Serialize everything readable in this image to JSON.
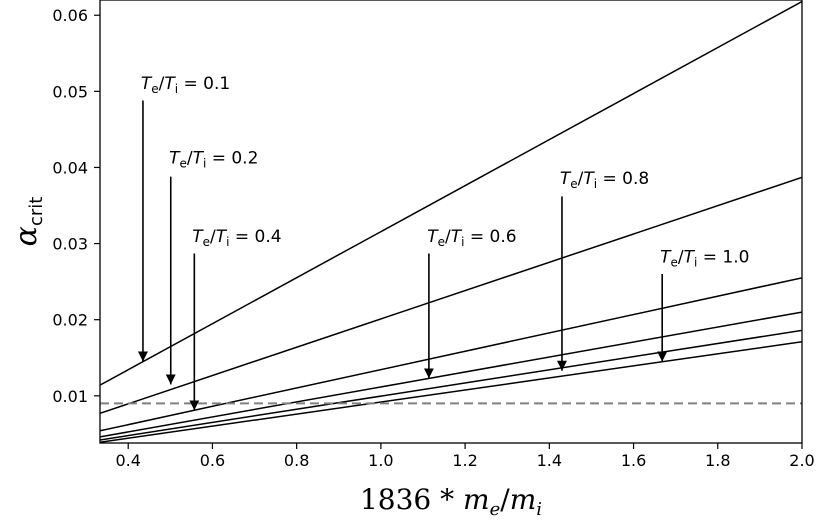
{
  "chart_data": {
    "type": "line",
    "title": "",
    "xlabel": "1836 * m_e/m_i",
    "ylabel": "α_crit",
    "xlim": [
      0.333,
      2.0
    ],
    "ylim": [
      0.0038,
      0.062
    ],
    "xticks": [
      0.4,
      0.6,
      0.8,
      1.0,
      1.2,
      1.4,
      1.6,
      1.8,
      2.0
    ],
    "xtick_labels": [
      "0.4",
      "0.6",
      "0.8",
      "1.0",
      "1.2",
      "1.4",
      "1.6",
      "1.8",
      "2.0"
    ],
    "yticks": [
      0.01,
      0.02,
      0.03,
      0.04,
      0.05,
      0.06
    ],
    "ytick_labels": [
      "0.01",
      "0.02",
      "0.03",
      "0.04",
      "0.05",
      "0.06"
    ],
    "grid": false,
    "series": [
      {
        "x": [
          0.333,
          2.0
        ],
        "y": [
          0.0114,
          0.0618
        ]
      },
      {
        "x": [
          0.333,
          2.0
        ],
        "y": [
          0.0077,
          0.0387
        ]
      },
      {
        "x": [
          0.333,
          2.0
        ],
        "y": [
          0.0054,
          0.0255
        ]
      },
      {
        "x": [
          0.333,
          2.0
        ],
        "y": [
          0.0046,
          0.021
        ]
      },
      {
        "x": [
          0.333,
          2.0
        ],
        "y": [
          0.0042,
          0.0186
        ]
      },
      {
        "x": [
          0.333,
          2.0
        ],
        "y": [
          0.0039,
          0.0171
        ]
      }
    ],
    "reference_line": {
      "y": 0.009,
      "style": "dashed",
      "color": "#808080"
    },
    "annotations": [
      {
        "ratio_label": "0.1",
        "text_x": 0.43,
        "text_y": 0.0503,
        "arrow_x": 0.435,
        "arrow_from": 0.0488,
        "arrow_to": 0.0145
      },
      {
        "ratio_label": "0.2",
        "text_x": 0.497,
        "text_y": 0.0405,
        "arrow_x": 0.501,
        "arrow_from": 0.0388,
        "arrow_to": 0.0115
      },
      {
        "ratio_label": "0.4",
        "text_x": 0.552,
        "text_y": 0.0302,
        "arrow_x": 0.557,
        "arrow_from": 0.0287,
        "arrow_to": 0.0081
      },
      {
        "ratio_label": "0.6",
        "text_x": 1.11,
        "text_y": 0.0302,
        "arrow_x": 1.114,
        "arrow_from": 0.0287,
        "arrow_to": 0.0123
      },
      {
        "ratio_label": "0.8",
        "text_x": 1.425,
        "text_y": 0.0378,
        "arrow_x": 1.43,
        "arrow_from": 0.0362,
        "arrow_to": 0.0133
      },
      {
        "ratio_label": "1.0",
        "text_x": 1.663,
        "text_y": 0.0275,
        "arrow_x": 1.668,
        "arrow_from": 0.026,
        "arrow_to": 0.0145
      }
    ]
  },
  "colors": {
    "line": "#000000",
    "reference": "#808080",
    "axes": "#000000"
  }
}
